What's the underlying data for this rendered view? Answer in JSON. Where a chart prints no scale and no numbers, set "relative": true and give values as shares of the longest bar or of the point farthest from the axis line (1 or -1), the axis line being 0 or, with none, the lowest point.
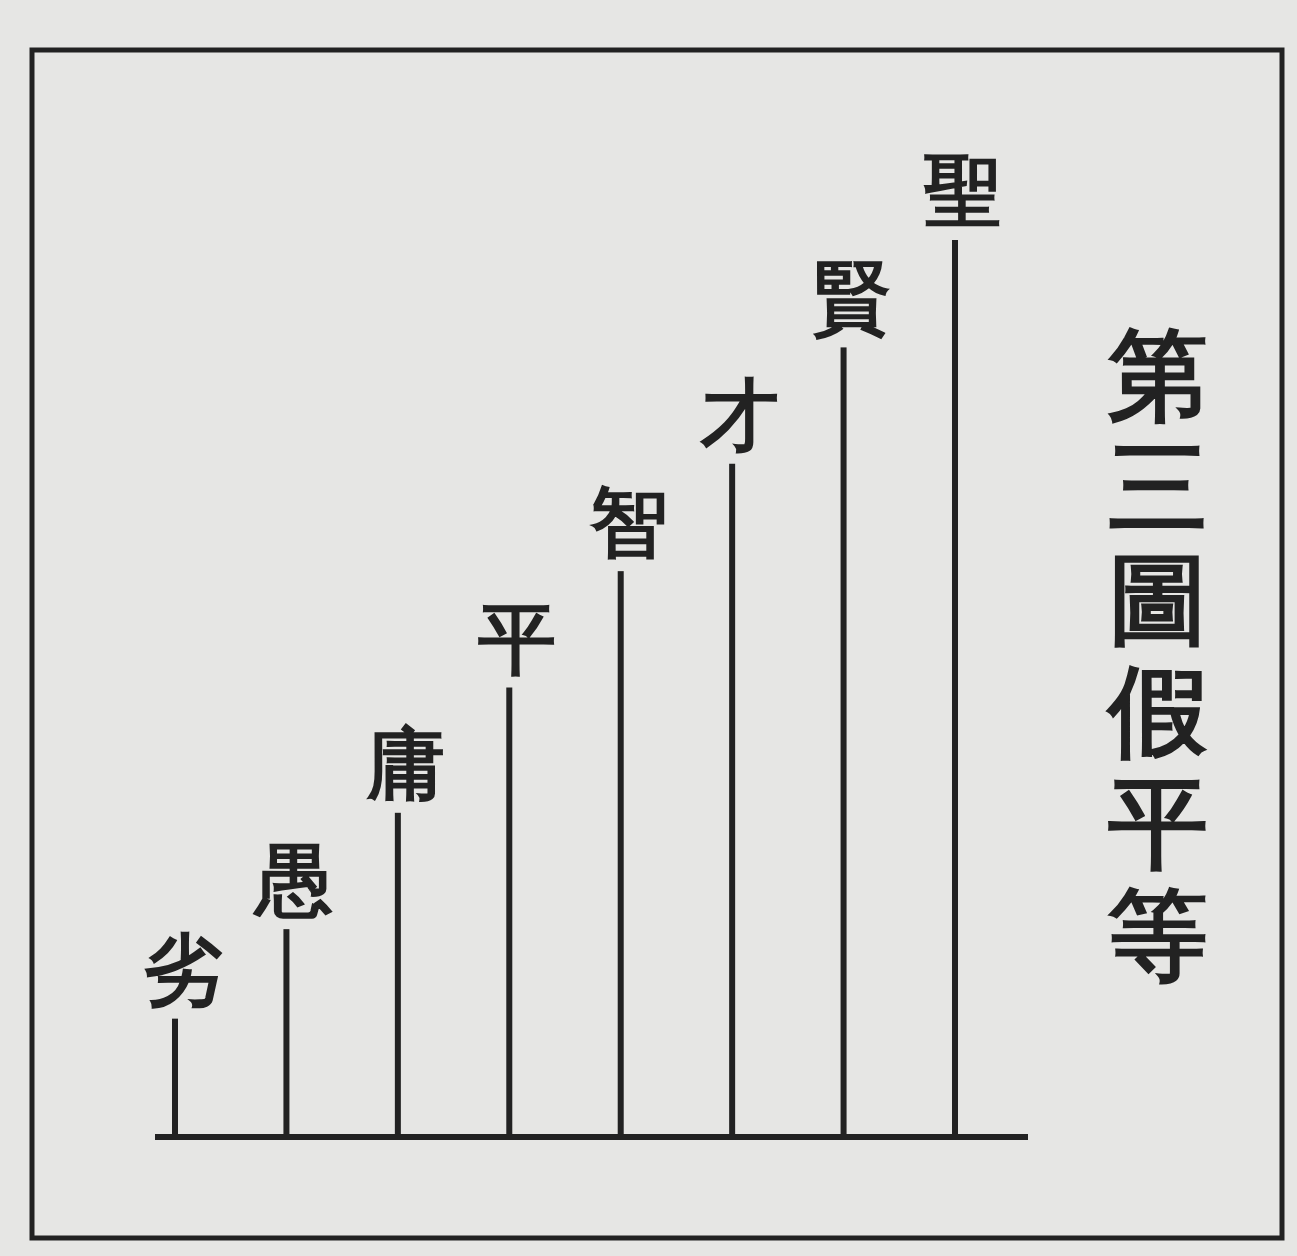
{
  "chart_data": {
    "type": "bar",
    "title": "第三圖假平等",
    "categories": [
      "劣",
      "愚",
      "庸",
      "平",
      "智",
      "才",
      "賢",
      "聖"
    ],
    "values": [
      0.13,
      0.23,
      0.36,
      0.5,
      0.63,
      0.75,
      0.88,
      1
    ],
    "relative": true,
    "color": "#222222"
  }
}
